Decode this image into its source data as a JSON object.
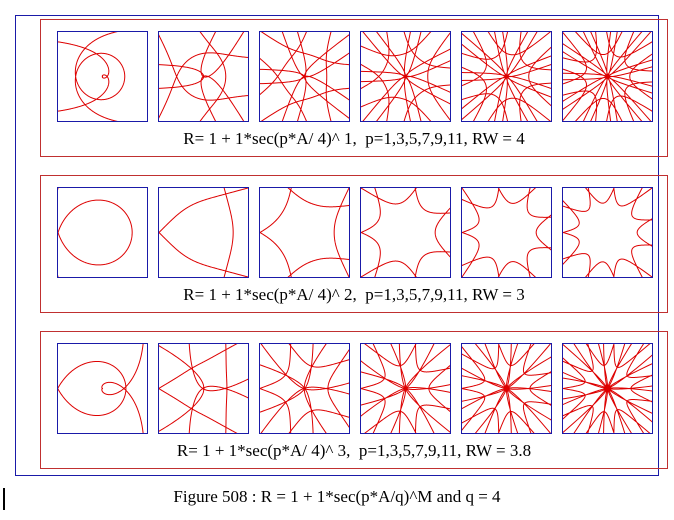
{
  "figure": {
    "caption": "Figure 508 : R = 1 + 1*sec(p*A/q)^M and q = 4"
  },
  "colors": {
    "curve": "#dd0000",
    "panel_border": "#1a1aa8",
    "row_border": "#c03030",
    "outer_border": "#1a1aa8"
  },
  "rows": [
    {
      "caption": "R= 1 + 1*sec(p*A/ 4)^ 1,  p=1,3,5,7,9,11, RW = 4",
      "M": 1,
      "RW": 4
    },
    {
      "caption": "R= 1 + 1*sec(p*A/ 4)^ 2,  p=1,3,5,7,9,11, RW = 3",
      "M": 2,
      "RW": 3
    },
    {
      "caption": "R= 1 + 1*sec(p*A/ 4)^ 3,  p=1,3,5,7,9,11, RW = 3.8",
      "M": 3,
      "RW": 3.8
    }
  ],
  "q": 4,
  "p_values": [
    1,
    3,
    5,
    7,
    9,
    11
  ]
}
